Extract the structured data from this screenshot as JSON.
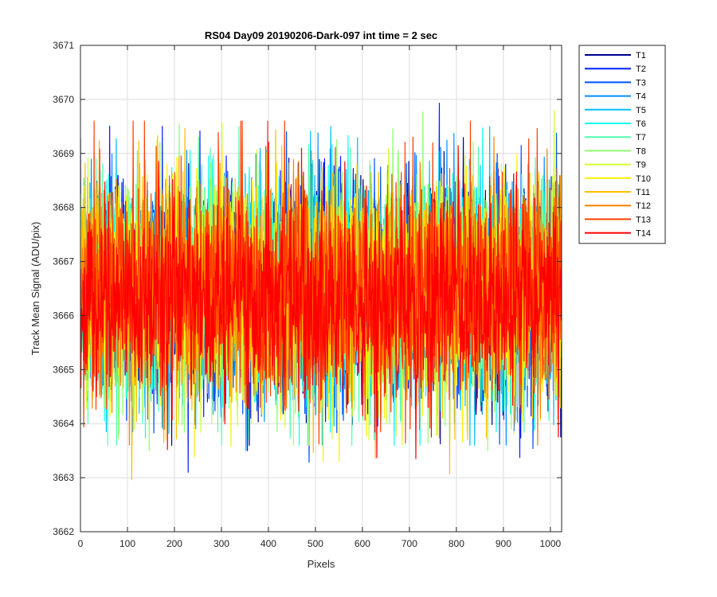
{
  "chart_data": {
    "type": "line",
    "title": "RS04 Day09 20190206-Dark-097 int time = 2 sec",
    "xlabel": "Pixels",
    "ylabel": "Track Mean Signal (ADU/pix)",
    "xlim": [
      0,
      1024
    ],
    "ylim": [
      3662,
      3671
    ],
    "xticks": [
      0,
      100,
      200,
      300,
      400,
      500,
      600,
      700,
      800,
      900,
      1000
    ],
    "yticks": [
      3662,
      3663,
      3664,
      3665,
      3666,
      3667,
      3668,
      3669,
      3670,
      3671
    ],
    "grid": true,
    "legend_position": "outside top-right",
    "n_points_per_series": 1024,
    "series": [
      {
        "name": "T1",
        "color": "#00008f",
        "mean": 3666.5,
        "std": 1.0,
        "min": 3663.6,
        "max": 3669.6
      },
      {
        "name": "T2",
        "color": "#0020ff",
        "mean": 3666.5,
        "std": 1.0,
        "min": 3663.1,
        "max": 3670.2
      },
      {
        "name": "T3",
        "color": "#0050ff",
        "mean": 3666.5,
        "std": 1.0,
        "min": 3662.5,
        "max": 3669.4
      },
      {
        "name": "T4",
        "color": "#0090ff",
        "mean": 3666.5,
        "std": 1.0,
        "min": 3663.4,
        "max": 3669.7
      },
      {
        "name": "T5",
        "color": "#00c0ff",
        "mean": 3666.5,
        "std": 1.0,
        "min": 3663.6,
        "max": 3669.5
      },
      {
        "name": "T6",
        "color": "#10ffef",
        "mean": 3666.5,
        "std": 1.0,
        "min": 3663.6,
        "max": 3669.6
      },
      {
        "name": "T7",
        "color": "#50ffaf",
        "mean": 3666.5,
        "std": 1.0,
        "min": 3663.6,
        "max": 3669.9
      },
      {
        "name": "T8",
        "color": "#8fff70",
        "mean": 3666.5,
        "std": 1.0,
        "min": 3663.5,
        "max": 3669.8
      },
      {
        "name": "T9",
        "color": "#cfff30",
        "mean": 3666.5,
        "std": 1.0,
        "min": 3663.6,
        "max": 3669.8
      },
      {
        "name": "T10",
        "color": "#ffef00",
        "mean": 3666.5,
        "std": 1.0,
        "min": 3663.3,
        "max": 3669.7
      },
      {
        "name": "T11",
        "color": "#ffbf00",
        "mean": 3666.5,
        "std": 1.0,
        "min": 3662.8,
        "max": 3669.6
      },
      {
        "name": "T12",
        "color": "#ff8000",
        "mean": 3666.5,
        "std": 1.0,
        "min": 3663.6,
        "max": 3670.1
      },
      {
        "name": "T13",
        "color": "#ff4000",
        "mean": 3666.5,
        "std": 1.0,
        "min": 3663.3,
        "max": 3669.6
      },
      {
        "name": "T14",
        "color": "#ff0000",
        "mean": 3666.3,
        "std": 0.9,
        "min": 3662.5,
        "max": 3669.8
      }
    ]
  }
}
